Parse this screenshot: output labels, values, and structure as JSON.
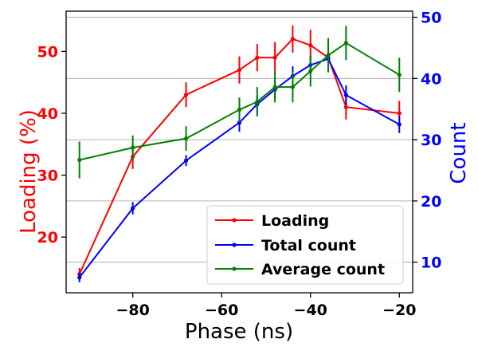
{
  "chart_data": {
    "type": "line",
    "xlabel": "Phase (ns)",
    "ylabel_left": "Loading (%)",
    "ylabel_right": "Count",
    "xlim": [
      -95,
      -17
    ],
    "ylim_left": [
      11,
      56.5
    ],
    "ylim_right": [
      5,
      51
    ],
    "x_ticks": [
      -80,
      -60,
      -40,
      -20
    ],
    "x_tick_labels": [
      "−80",
      "−60",
      "−40",
      "−20"
    ],
    "left_ticks": [
      20,
      30,
      40,
      50
    ],
    "left_tick_labels": [
      "20",
      "30",
      "40",
      "50"
    ],
    "right_ticks": [
      10,
      20,
      30,
      40,
      50
    ],
    "right_tick_labels": [
      "10",
      "20",
      "30",
      "40",
      "50"
    ],
    "grid": "horizontal",
    "legend_position": "lower-right",
    "colors": {
      "left_axis": "#ff0000",
      "right_axis": "#0000ff"
    },
    "series": [
      {
        "name": "Loading",
        "axis": "left",
        "color": "#ff0000",
        "x": [
          -92,
          -80,
          -68,
          -56,
          -52,
          -48,
          -44,
          -40,
          -36,
          -32,
          -20
        ],
        "y": [
          14,
          33,
          43,
          47,
          49,
          49,
          52,
          51,
          49,
          41,
          40
        ],
        "err": [
          1,
          2,
          2,
          2.2,
          2.2,
          2.5,
          2.2,
          2.5,
          2.2,
          2,
          2
        ]
      },
      {
        "name": "Total count",
        "axis": "right",
        "color": "#0000ff",
        "x": [
          -92,
          -80,
          -68,
          -56,
          -52,
          -48,
          -44,
          -40,
          -36,
          -32,
          -20
        ],
        "y": [
          7.5,
          18.8,
          26.6,
          32.8,
          35.8,
          38.2,
          40.4,
          42.2,
          43.2,
          37.3,
          32.5
        ],
        "err": [
          0.8,
          1.0,
          0.9,
          1.5,
          1.4,
          1.5,
          1.6,
          1.5,
          1.5,
          1.6,
          1.4
        ]
      },
      {
        "name": "Average count",
        "axis": "right",
        "color": "#008000",
        "x": [
          -92,
          -80,
          -68,
          -56,
          -52,
          -48,
          -44,
          -40,
          -36,
          -32,
          -20
        ],
        "y": [
          26.7,
          28.7,
          30.2,
          34.9,
          36.2,
          38.6,
          38.6,
          41.2,
          43.8,
          45.8,
          40.6
        ],
        "err": [
          3.0,
          2.0,
          2.0,
          2.0,
          2.4,
          2.5,
          2.5,
          2.5,
          2.8,
          2.8,
          2.8
        ]
      }
    ]
  }
}
